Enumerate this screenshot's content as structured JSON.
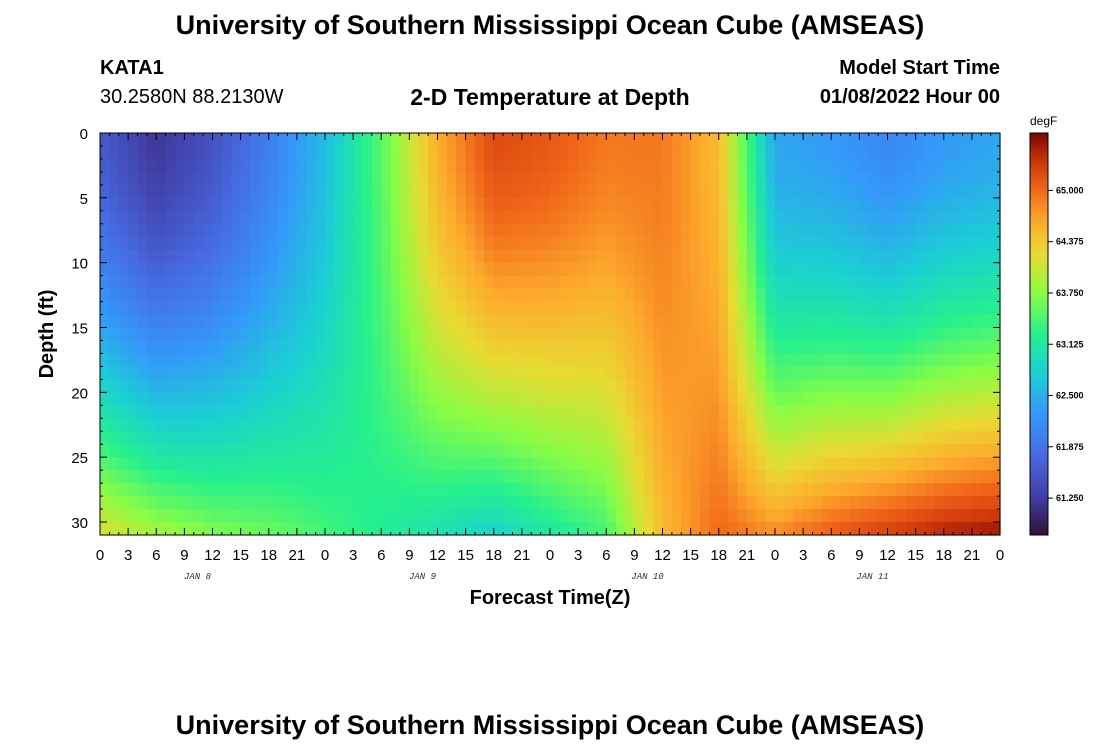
{
  "header": {
    "title": "University of Southern Mississippi Ocean Cube (AMSEAS)",
    "station": "KATA1",
    "coords": "30.2580N  88.2130W",
    "plot_title": "2-D Temperature at Depth",
    "model_start_label": "Model Start Time",
    "model_start_value": "01/08/2022 Hour 00"
  },
  "footer": {
    "title": "University of Southern Mississippi Ocean Cube (AMSEAS)"
  },
  "chart_data": {
    "type": "heatmap",
    "title": "2-D Temperature at Depth",
    "xlabel": "Forecast Time(Z)",
    "ylabel": "Depth (ft)",
    "x_tick_labels": [
      "0",
      "3",
      "6",
      "9",
      "12",
      "15",
      "18",
      "21",
      "0",
      "3",
      "6",
      "9",
      "12",
      "15",
      "18",
      "21",
      "0",
      "3",
      "6",
      "9",
      "12",
      "15",
      "18",
      "21",
      "0",
      "3",
      "6",
      "9",
      "12",
      "15",
      "18",
      "21",
      "0"
    ],
    "day_labels": [
      "JAN 8",
      "JAN 9",
      "JAN 10",
      "JAN 11"
    ],
    "x_range_hours": [
      0,
      96
    ],
    "y_tick_labels": [
      "0",
      "5",
      "10",
      "15",
      "20",
      "25",
      "30"
    ],
    "y_range_ft": [
      0,
      31
    ],
    "colorbar": {
      "units": "degF",
      "ticks": [
        "65.000",
        "64.375",
        "63.750",
        "63.125",
        "62.500",
        "61.875",
        "61.250"
      ],
      "range": [
        60.8,
        65.7
      ]
    },
    "field_description": {
      "hours": [
        0,
        6,
        12,
        18,
        24,
        30,
        36,
        42,
        48,
        54,
        60,
        66,
        72,
        78,
        84,
        90,
        96
      ],
      "surface_temp_degF": [
        61.6,
        61.2,
        61.5,
        62.0,
        62.6,
        63.5,
        64.6,
        65.2,
        65.1,
        64.9,
        64.9,
        64.5,
        62.4,
        62.3,
        62.1,
        62.3,
        62.4
      ],
      "bottom_temp_degF": [
        64.2,
        63.9,
        63.7,
        63.6,
        63.4,
        63.2,
        63.0,
        62.8,
        63.1,
        63.4,
        64.5,
        65.0,
        64.8,
        65.1,
        65.3,
        65.5,
        65.6
      ]
    }
  }
}
